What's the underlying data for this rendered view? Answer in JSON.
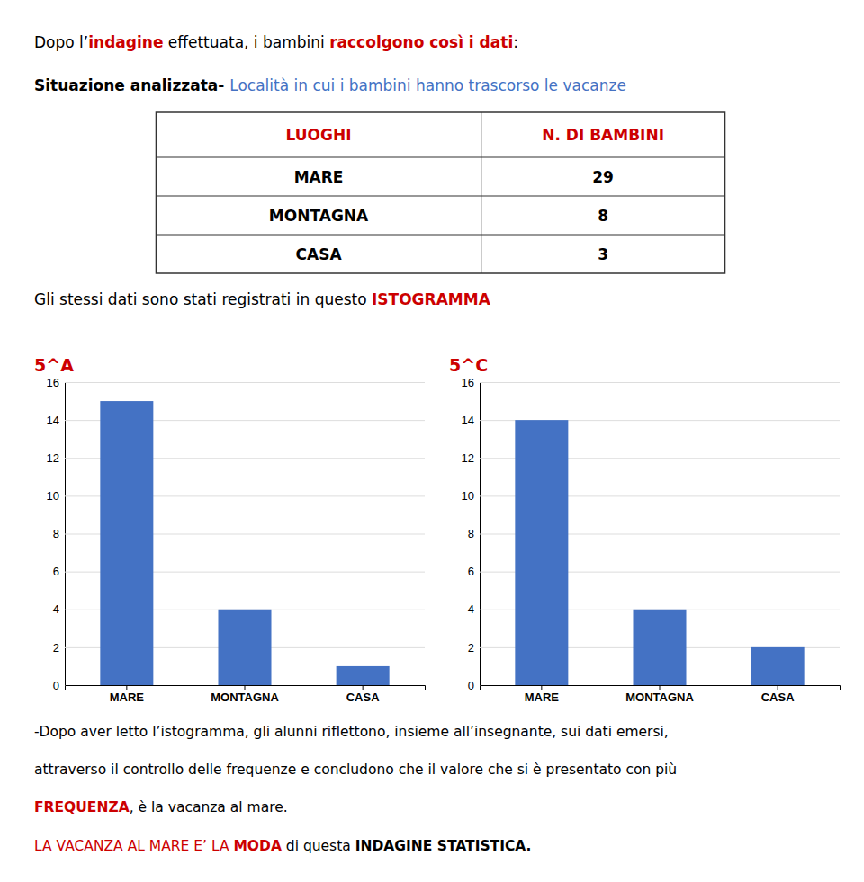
{
  "heading": [
    [
      {
        "text": "Dopo l’",
        "bold": false,
        "color": "black"
      },
      {
        "text": "indagine",
        "bold": true,
        "color": "#cc0000"
      },
      {
        "text": " effettuata, i bambini ",
        "bold": false,
        "color": "black"
      },
      {
        "text": "raccolgono così i dati",
        "bold": true,
        "color": "#cc0000"
      },
      {
        "text": ":",
        "bold": false,
        "color": "black"
      }
    ],
    [
      {
        "text": "Situazione analizzata- ",
        "bold": true,
        "color": "black"
      },
      {
        "text": "Località in cui i bambini hanno trascorso le vacanze",
        "bold": false,
        "color": "#4472C4"
      }
    ]
  ],
  "table": {
    "headers": [
      "LUOGHI",
      "N. DI BAMBINI"
    ],
    "header_color": "#cc0000",
    "rows": [
      [
        "MARE",
        29
      ],
      [
        "MONTAGNA",
        8
      ],
      [
        "CASA",
        3
      ]
    ]
  },
  "subtitle": [
    {
      "text": "Gli stessi dati sono stati registrati in questo ",
      "bold": false,
      "color": "black"
    },
    {
      "text": "ISTOGRAMMA",
      "bold": true,
      "color": "#cc0000"
    }
  ],
  "chart_data": [
    {
      "type": "bar",
      "title": "5^A",
      "title_color": "#cc0000",
      "categories": [
        "MARE",
        "MONTAGNA",
        "CASA"
      ],
      "values": [
        15,
        4,
        1
      ],
      "color": "#4472C4",
      "ylim": [
        0,
        16
      ],
      "yticks": [
        0,
        2,
        4,
        6,
        8,
        10,
        12,
        14,
        16
      ],
      "grid": true
    },
    {
      "type": "bar",
      "title": "5^C",
      "title_color": "#cc0000",
      "categories": [
        "MARE",
        "MONTAGNA",
        "CASA"
      ],
      "values": [
        14,
        4,
        2
      ],
      "color": "#4472C4",
      "ylim": [
        0,
        16
      ],
      "yticks": [
        0,
        2,
        4,
        6,
        8,
        10,
        12,
        14,
        16
      ],
      "grid": true
    }
  ],
  "footer": [
    [
      {
        "text": "-Dopo aver letto l’istogramma, gli alunni riflettono, insieme all’insegnante, sui dati emersi,",
        "bold": false,
        "color": "black"
      }
    ],
    [
      {
        "text": "attraverso il controllo delle frequenze e concludono che il valore che si è presentato con più",
        "bold": false,
        "color": "black"
      }
    ],
    [
      {
        "text": "FREQUENZA",
        "bold": true,
        "color": "#cc0000"
      },
      {
        "text": ", è la vacanza al mare.",
        "bold": false,
        "color": "black"
      }
    ],
    [
      {
        "text": "LA VACANZA AL MARE E’ LA ",
        "bold": false,
        "color": "#cc0000"
      },
      {
        "text": "MODA",
        "bold": true,
        "color": "#cc0000"
      },
      {
        "text": " di questa ",
        "bold": false,
        "color": "black"
      },
      {
        "text": "INDAGINE STATISTICA.",
        "bold": true,
        "color": "black"
      }
    ]
  ]
}
